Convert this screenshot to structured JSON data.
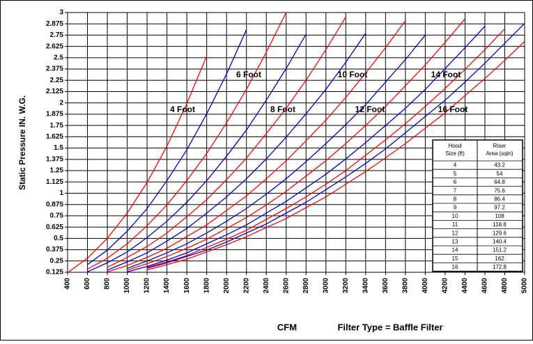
{
  "chart_data": {
    "type": "line",
    "x_label": "CFM",
    "subtitle": "Filter Type = Baffle Filter",
    "y_label": "Static Pressure IN. W.G.",
    "x": [
      400,
      600,
      800,
      1000,
      1200,
      1400,
      1600,
      1800,
      2000,
      2200,
      2400,
      2600,
      2800,
      3000,
      3200,
      3400,
      3600,
      3800,
      4000,
      4200,
      4400,
      4600,
      4800,
      5000
    ],
    "xlim": [
      400,
      5000
    ],
    "xticks": [
      400,
      600,
      800,
      1000,
      1200,
      1400,
      1600,
      1800,
      2000,
      2200,
      2400,
      2600,
      2800,
      3000,
      3200,
      3400,
      3600,
      3800,
      4000,
      4200,
      4400,
      4600,
      4800,
      5000
    ],
    "ylim": [
      0.125,
      3
    ],
    "yticks": [
      0.125,
      0.25,
      0.375,
      0.5,
      0.625,
      0.75,
      0.875,
      1,
      1.125,
      1.25,
      1.375,
      1.5,
      1.625,
      1.75,
      1.875,
      2,
      2.125,
      2.25,
      2.375,
      2.5,
      2.625,
      2.75,
      2.875,
      3
    ],
    "grid": true,
    "series": [
      {
        "color": "#ff0000",
        "values": [
          0.12,
          0.28,
          0.5,
          0.78,
          1.12,
          1.52,
          1.99,
          2.52,
          null,
          null,
          null,
          null,
          null,
          null,
          null,
          null,
          null,
          null,
          null,
          null,
          null,
          null,
          null,
          null
        ]
      },
      {
        "color": "#0000cc",
        "values": [
          null,
          0.21,
          0.37,
          0.58,
          0.83,
          1.14,
          1.48,
          1.88,
          2.32,
          2.81,
          null,
          null,
          null,
          null,
          null,
          null,
          null,
          null,
          null,
          null,
          null,
          null,
          null,
          null
        ]
      },
      {
        "color": "#ff0000",
        "values": [
          null,
          0.16,
          0.28,
          0.44,
          0.64,
          0.87,
          1.14,
          1.44,
          1.78,
          2.15,
          2.56,
          3.0,
          null,
          null,
          null,
          null,
          null,
          null,
          null,
          null,
          null,
          null,
          null,
          null
        ]
      },
      {
        "color": "#0000cc",
        "values": [
          null,
          0.13,
          0.23,
          0.35,
          0.51,
          0.69,
          0.9,
          1.14,
          1.41,
          1.7,
          2.03,
          2.38,
          2.76,
          null,
          null,
          null,
          null,
          null,
          null,
          null,
          null,
          null,
          null,
          null
        ]
      },
      {
        "color": "#ff0000",
        "values": [
          null,
          null,
          0.18,
          0.29,
          0.41,
          0.56,
          0.74,
          0.93,
          1.15,
          1.39,
          1.66,
          1.94,
          2.25,
          2.59,
          2.95,
          null,
          null,
          null,
          null,
          null,
          null,
          null,
          null,
          null
        ]
      },
      {
        "color": "#0000cc",
        "values": [
          null,
          null,
          0.15,
          0.24,
          0.34,
          0.47,
          0.61,
          0.78,
          0.96,
          1.16,
          1.38,
          1.62,
          1.88,
          2.15,
          2.45,
          2.77,
          null,
          null,
          null,
          null,
          null,
          null,
          null,
          null
        ]
      },
      {
        "color": "#ff0000",
        "values": [
          null,
          null,
          0.13,
          0.2,
          0.29,
          0.39,
          0.52,
          0.65,
          0.81,
          0.97,
          1.16,
          1.36,
          1.58,
          1.81,
          2.06,
          2.33,
          2.61,
          2.91,
          null,
          null,
          null,
          null,
          null,
          null
        ]
      },
      {
        "color": "#0000cc",
        "values": [
          null,
          null,
          null,
          0.17,
          0.25,
          0.34,
          0.44,
          0.56,
          0.69,
          0.83,
          0.99,
          1.16,
          1.35,
          1.55,
          1.76,
          1.98,
          2.23,
          2.48,
          2.75,
          null,
          null,
          null,
          null,
          null
        ]
      },
      {
        "color": "#ff0000",
        "values": [
          null,
          null,
          null,
          0.15,
          0.22,
          0.3,
          0.39,
          0.49,
          0.61,
          0.73,
          0.87,
          1.02,
          1.19,
          1.36,
          1.55,
          1.75,
          1.96,
          2.19,
          2.42,
          2.67,
          2.93,
          null,
          null,
          null
        ]
      },
      {
        "color": "#0000cc",
        "values": [
          null,
          null,
          null,
          0.13,
          0.19,
          0.26,
          0.34,
          0.44,
          0.54,
          0.65,
          0.78,
          0.91,
          1.06,
          1.21,
          1.38,
          1.56,
          1.75,
          1.94,
          2.15,
          2.38,
          2.61,
          2.85,
          null,
          null
        ]
      },
      {
        "color": "#ff0000",
        "values": [
          null,
          null,
          null,
          null,
          0.18,
          0.24,
          0.31,
          0.4,
          0.49,
          0.59,
          0.71,
          0.83,
          0.96,
          1.1,
          1.25,
          1.42,
          1.59,
          1.77,
          1.96,
          2.16,
          2.37,
          2.59,
          2.82,
          null
        ]
      },
      {
        "color": "#0000cc",
        "values": [
          null,
          null,
          null,
          null,
          0.17,
          0.23,
          0.3,
          0.37,
          0.46,
          0.56,
          0.66,
          0.78,
          0.9,
          1.04,
          1.18,
          1.33,
          1.49,
          1.67,
          1.85,
          2.03,
          2.23,
          2.44,
          2.66,
          2.88
        ]
      },
      {
        "color": "#ff0000",
        "values": [
          null,
          null,
          null,
          null,
          0.15,
          0.21,
          0.27,
          0.35,
          0.43,
          0.52,
          0.62,
          0.72,
          0.84,
          0.96,
          1.1,
          1.24,
          1.39,
          1.55,
          1.72,
          1.89,
          2.08,
          2.27,
          2.47,
          2.68
        ]
      }
    ],
    "annotations": [
      "4 Foot",
      "6 Foot",
      "8 Foot",
      "10 Foot",
      "12 Foot",
      "14 Foot",
      "16 Foot"
    ],
    "table": {
      "header": [
        "Hood Size (ft)",
        "Riser Area (sqin)"
      ],
      "rows": [
        [
          "4",
          "43.2"
        ],
        [
          "5",
          "54"
        ],
        [
          "6",
          "64.8"
        ],
        [
          "7",
          "75.6"
        ],
        [
          "8",
          "86.4"
        ],
        [
          "9",
          "97.2"
        ],
        [
          "10",
          "108"
        ],
        [
          "11",
          "118.8"
        ],
        [
          "12",
          "129.6"
        ],
        [
          "13",
          "140.4"
        ],
        [
          "14",
          "151.2"
        ],
        [
          "15",
          "162"
        ],
        [
          "16",
          "172.8"
        ]
      ]
    }
  }
}
